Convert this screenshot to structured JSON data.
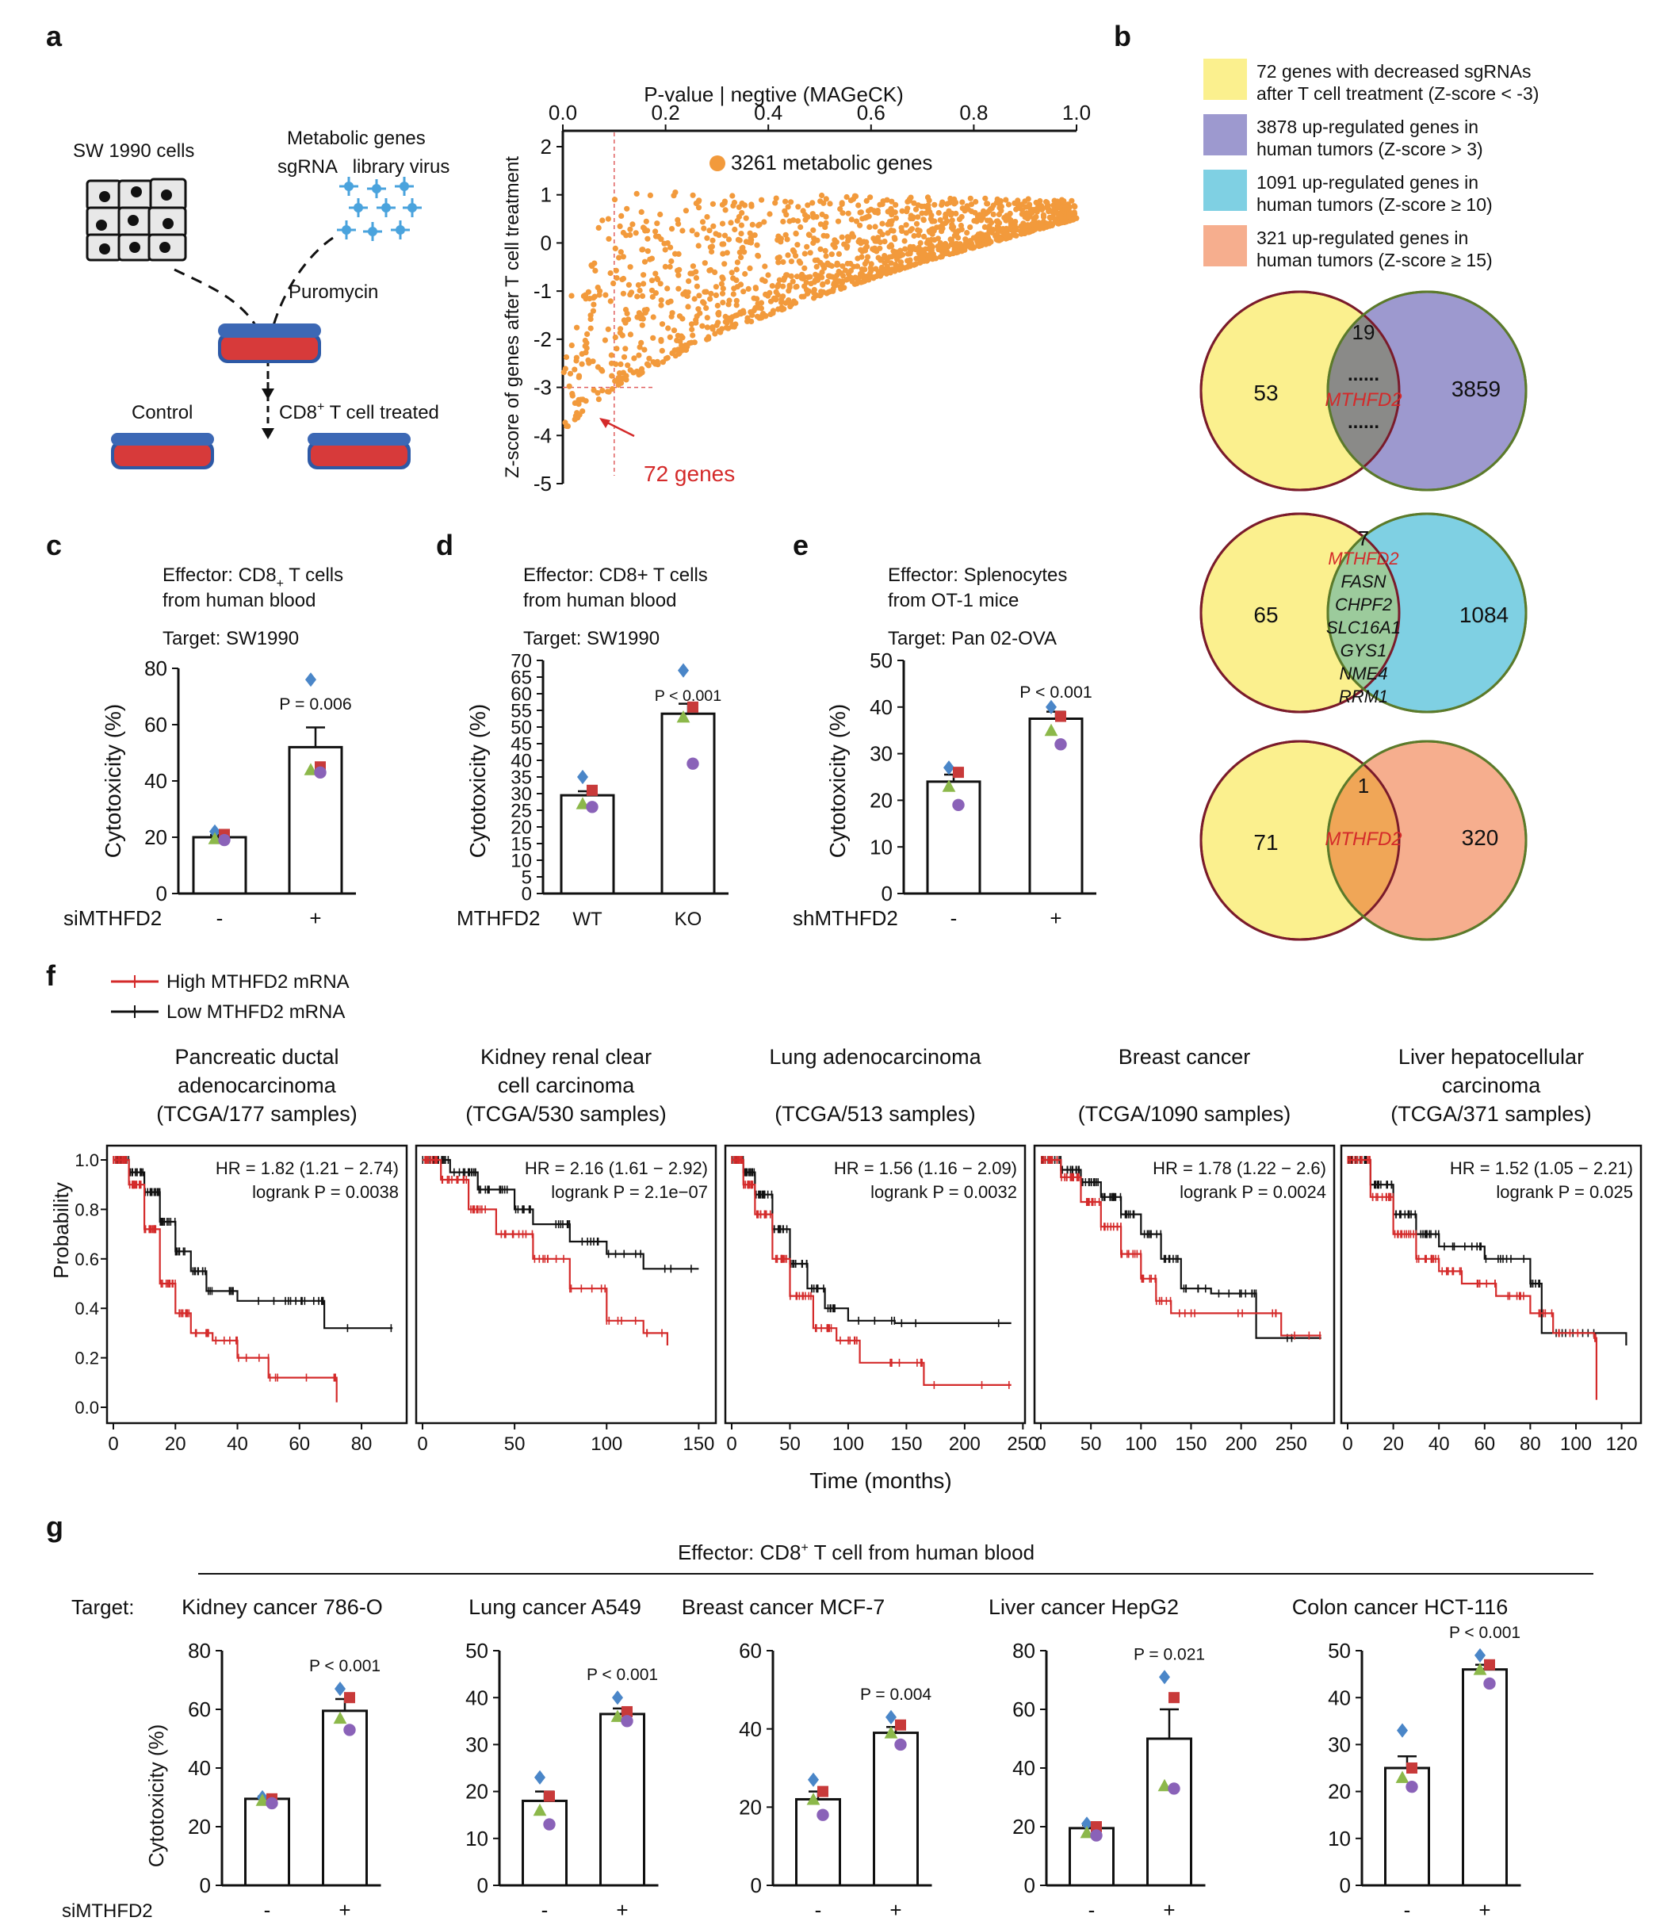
{
  "colors": {
    "orange": "#f29a3c",
    "yellow": "#fbf08e",
    "purple": "#9d99cf",
    "cyan": "#7fd0e3",
    "salmon": "#f6ae8e",
    "red": "#d42a2a",
    "dark": "#111111"
  },
  "panel_labels": {
    "a": "a",
    "b": "b",
    "c": "c",
    "d": "d",
    "e": "e",
    "f": "f",
    "g": "g"
  },
  "panel_a": {
    "schematic": {
      "cells_label": "SW 1990 cells",
      "library_line1": "Metabolic genes",
      "library_line2": "sgRNA   library virus",
      "selection": "Puromycin",
      "control": "Control",
      "treated_pre": "CD8",
      "treated_sup": "+",
      "treated_post": " T cell treated"
    },
    "chart_data": {
      "type": "scatter",
      "title": "P-value | negtive (MAGeCK)",
      "xlabel": "P-value | negtive (MAGeCK)",
      "ylabel": "Z-score of genes after T cell treatment",
      "xlim": [
        0,
        1
      ],
      "ylim": [
        -5,
        2
      ],
      "x_ticks": [
        "0.0",
        "0.2",
        "0.4",
        "0.6",
        "0.8",
        "1.0"
      ],
      "y_ticks": [
        "2",
        "1",
        "0",
        "-1",
        "-2",
        "-3",
        "-4",
        "-5"
      ],
      "legend": "3261 metabolic genes",
      "n_points": 3261,
      "x_threshold": 0.1,
      "y_threshold": -3,
      "annotation": "72 genes",
      "trend": {
        "lower_bound": [
          [
            0.0,
            -3.9
          ],
          [
            0.1,
            -3.0
          ],
          [
            0.3,
            -1.9
          ],
          [
            0.5,
            -1.1
          ],
          [
            0.7,
            -0.4
          ],
          [
            1.0,
            0.5
          ]
        ],
        "upper_bound": [
          [
            0.02,
            -1.0
          ],
          [
            0.1,
            1.2
          ],
          [
            0.3,
            1.0
          ],
          [
            0.5,
            1.0
          ],
          [
            0.7,
            0.95
          ],
          [
            1.0,
            0.9
          ]
        ]
      }
    }
  },
  "panel_b": {
    "legend": [
      {
        "line1": "72 genes with decreased sgRNAs",
        "line2": "after T cell treatment (Z-score < -3)",
        "color": "#fbf08e"
      },
      {
        "line1": "3878 up-regulated genes in",
        "line2": "human tumors (Z-score > 3)",
        "color": "#9d99cf"
      },
      {
        "line1": "1091 up-regulated genes in",
        "line2": "human tumors (Z-score ≥ 10)",
        "color": "#7fd0e3"
      },
      {
        "line1": "321 up-regulated genes in",
        "line2": "human tumors (Z-score ≥ 15)",
        "color": "#f6ae8e"
      }
    ],
    "venn1": {
      "left": "53",
      "overlap": "19",
      "right": "3859",
      "dots": "......",
      "gene": "MTHFD2"
    },
    "venn2": {
      "left": "65",
      "overlap": "7",
      "right": "1084",
      "genes": [
        "MTHFD2",
        "FASN",
        "CHPF2",
        "SLC16A1",
        "GYS1",
        "NME4",
        "RRM1"
      ]
    },
    "venn3": {
      "left": "71",
      "overlap": "1",
      "right": "320",
      "gene": "MTHFD2"
    }
  },
  "panel_c": {
    "effector1": "Effector: CD8",
    "effector_sub": "+",
    "effector1_end": " T cells",
    "effector2": "from human blood",
    "target": "Target: SW1990",
    "chart_data": {
      "type": "bar",
      "categories": [
        "-",
        "+"
      ],
      "values": [
        20,
        52
      ],
      "errors": [
        0.8,
        7
      ],
      "ylim": [
        0,
        80
      ],
      "y_ticks": [
        "0",
        "20",
        "40",
        "60",
        "80"
      ],
      "ylabel": "Cytotoxicity (%)",
      "xlabel": "siMTHFD2",
      "pvalue": "P = 0.006",
      "points": [
        [
          22,
          21,
          19.5,
          19
        ],
        [
          76,
          45,
          44,
          43
        ]
      ]
    }
  },
  "panel_d": {
    "effector1": "Effector: CD8+ T cells",
    "effector2": "from human blood",
    "target": "Target: SW1990",
    "chart_data": {
      "type": "bar",
      "categories": [
        "WT",
        "KO"
      ],
      "values": [
        29.5,
        54
      ],
      "errors": [
        1.2,
        3
      ],
      "ylim": [
        0,
        70
      ],
      "y_ticks": [
        "0",
        "5",
        "10",
        "15",
        "20",
        "25",
        "30",
        "35",
        "40",
        "45",
        "50",
        "55",
        "60",
        "65",
        "70"
      ],
      "ylabel": "Cytotoxicity (%)",
      "xlabel": "MTHFD2",
      "pvalue": "P < 0.001",
      "points": [
        [
          35,
          31,
          27,
          26
        ],
        [
          67,
          56,
          53,
          39
        ]
      ]
    }
  },
  "panel_e": {
    "effector1": "Effector: Splenocytes",
    "effector2": "from OT-1 mice",
    "target": "Target: Pan 02-OVA",
    "chart_data": {
      "type": "bar",
      "categories": [
        "-",
        "+"
      ],
      "values": [
        24,
        37.5
      ],
      "errors": [
        1.5,
        1.5
      ],
      "ylim": [
        0,
        50
      ],
      "y_ticks": [
        "0",
        "10",
        "20",
        "30",
        "40",
        "50"
      ],
      "ylabel": "Cytotoxicity (%)",
      "xlabel": "shMTHFD2",
      "pvalue": "P < 0.001",
      "points": [
        [
          27,
          26,
          23,
          19
        ],
        [
          40,
          38,
          35,
          32
        ]
      ]
    }
  },
  "panel_f": {
    "legend_high": "High MTHFD2 mRNA",
    "legend_low": "Low MTHFD2 mRNA",
    "ylabel": "Probability",
    "xlabel": "Time (months)",
    "y_ticks": [
      "0.0",
      "0.2",
      "0.4",
      "0.6",
      "0.8",
      "1.0"
    ],
    "chart_data": [
      {
        "type": "line",
        "title1": "Pancreatic ductal",
        "title2": "adenocarcinoma",
        "title3": "(TCGA/177 samples)",
        "hr": "HR = 1.82 (1.21 − 2.74)",
        "logrank": "logrank P = 0.0038",
        "xmax": 92,
        "x_ticks": [
          "0",
          "20",
          "40",
          "60",
          "80"
        ],
        "high": [
          [
            0,
            1
          ],
          [
            5,
            0.9
          ],
          [
            10,
            0.72
          ],
          [
            15,
            0.5
          ],
          [
            20,
            0.38
          ],
          [
            25,
            0.3
          ],
          [
            32,
            0.27
          ],
          [
            40,
            0.2
          ],
          [
            50,
            0.12
          ],
          [
            70,
            0.12
          ],
          [
            72,
            0.02
          ]
        ],
        "low": [
          [
            0,
            1
          ],
          [
            5,
            0.95
          ],
          [
            10,
            0.87
          ],
          [
            15,
            0.75
          ],
          [
            20,
            0.63
          ],
          [
            25,
            0.55
          ],
          [
            30,
            0.47
          ],
          [
            40,
            0.43
          ],
          [
            60,
            0.43
          ],
          [
            67,
            0.43
          ],
          [
            68,
            0.32
          ],
          [
            90,
            0.32
          ]
        ]
      },
      {
        "type": "line",
        "title1": "Kidney renal clear",
        "title2": "cell carcinoma",
        "title3": "(TCGA/530 samples)",
        "hr": "HR = 2.16 (1.61 − 2.92)",
        "logrank": "logrank P = 2.1e−07",
        "xmax": 155,
        "x_ticks": [
          "0",
          "50",
          "100",
          "150"
        ],
        "high": [
          [
            0,
            1
          ],
          [
            10,
            0.92
          ],
          [
            25,
            0.8
          ],
          [
            40,
            0.7
          ],
          [
            60,
            0.6
          ],
          [
            80,
            0.48
          ],
          [
            100,
            0.35
          ],
          [
            120,
            0.3
          ],
          [
            133,
            0.25
          ]
        ],
        "low": [
          [
            0,
            1
          ],
          [
            15,
            0.95
          ],
          [
            30,
            0.88
          ],
          [
            50,
            0.8
          ],
          [
            60,
            0.74
          ],
          [
            80,
            0.67
          ],
          [
            100,
            0.62
          ],
          [
            120,
            0.56
          ],
          [
            150,
            0.56
          ]
        ]
      },
      {
        "type": "line",
        "title1": "Lung adenocarcinoma",
        "title2": "",
        "title3": "(TCGA/513 samples)",
        "hr": "HR = 1.56 (1.16 − 2.09)",
        "logrank": "logrank P = 0.0032",
        "xmax": 245,
        "x_ticks": [
          "0",
          "50",
          "100",
          "150",
          "200",
          "250"
        ],
        "high": [
          [
            0,
            1
          ],
          [
            10,
            0.9
          ],
          [
            20,
            0.78
          ],
          [
            35,
            0.6
          ],
          [
            50,
            0.45
          ],
          [
            70,
            0.32
          ],
          [
            90,
            0.27
          ],
          [
            110,
            0.18
          ],
          [
            160,
            0.18
          ],
          [
            165,
            0.09
          ],
          [
            240,
            0.09
          ]
        ],
        "low": [
          [
            0,
            1
          ],
          [
            10,
            0.95
          ],
          [
            20,
            0.86
          ],
          [
            35,
            0.72
          ],
          [
            50,
            0.58
          ],
          [
            65,
            0.48
          ],
          [
            80,
            0.4
          ],
          [
            100,
            0.35
          ],
          [
            140,
            0.34
          ],
          [
            240,
            0.34
          ]
        ]
      },
      {
        "type": "line",
        "title1": "Breast cancer",
        "title2": "",
        "title3": "(TCGA/1090 samples)",
        "hr": "HR = 1.78 (1.22 − 2.6)",
        "logrank": "logrank P = 0.0024",
        "xmax": 285,
        "x_ticks": [
          "0",
          "50",
          "100",
          "150",
          "200",
          "250"
        ],
        "high": [
          [
            0,
            1
          ],
          [
            20,
            0.93
          ],
          [
            40,
            0.83
          ],
          [
            60,
            0.73
          ],
          [
            80,
            0.62
          ],
          [
            100,
            0.52
          ],
          [
            115,
            0.43
          ],
          [
            130,
            0.38
          ],
          [
            200,
            0.38
          ],
          [
            240,
            0.29
          ],
          [
            280,
            0.29
          ]
        ],
        "low": [
          [
            0,
            1
          ],
          [
            20,
            0.96
          ],
          [
            40,
            0.91
          ],
          [
            60,
            0.85
          ],
          [
            80,
            0.78
          ],
          [
            100,
            0.7
          ],
          [
            120,
            0.6
          ],
          [
            140,
            0.48
          ],
          [
            170,
            0.46
          ],
          [
            210,
            0.46
          ],
          [
            215,
            0.28
          ],
          [
            280,
            0.28
          ]
        ]
      },
      {
        "type": "line",
        "title1": "Liver hepatocellular",
        "title2": "carcinoma",
        "title3": "(TCGA/371 samples)",
        "hr": "HR = 1.52 (1.05 − 2.21)",
        "logrank": "logrank P = 0.025",
        "xmax": 125,
        "x_ticks": [
          "0",
          "20",
          "40",
          "60",
          "80",
          "100",
          "120"
        ],
        "high": [
          [
            0,
            1
          ],
          [
            10,
            0.85
          ],
          [
            20,
            0.7
          ],
          [
            30,
            0.6
          ],
          [
            40,
            0.55
          ],
          [
            50,
            0.5
          ],
          [
            65,
            0.45
          ],
          [
            80,
            0.38
          ],
          [
            90,
            0.3
          ],
          [
            108,
            0.28
          ],
          [
            109,
            0.03
          ]
        ],
        "low": [
          [
            0,
            1
          ],
          [
            10,
            0.9
          ],
          [
            20,
            0.78
          ],
          [
            30,
            0.7
          ],
          [
            40,
            0.65
          ],
          [
            60,
            0.6
          ],
          [
            80,
            0.5
          ],
          [
            85,
            0.3
          ],
          [
            100,
            0.3
          ],
          [
            122,
            0.25
          ]
        ]
      }
    ]
  },
  "panel_g": {
    "effector_pre": "Effector: CD8",
    "effector_sup": "+",
    "effector_post": " T cell from human blood",
    "target_label": "Target:",
    "ylabel": "Cytotoxicity (%)",
    "xlabel": "siMTHFD2",
    "chart_data": [
      {
        "type": "bar",
        "title": "Kidney cancer 786-O",
        "categories": [
          "-",
          "+"
        ],
        "values": [
          29.5,
          59.5
        ],
        "errors": [
          0.8,
          4
        ],
        "ylim": [
          0,
          80
        ],
        "y_ticks": [
          "0",
          "20",
          "40",
          "60",
          "80"
        ],
        "pvalue": "P < 0.001",
        "points": [
          [
            30,
            29.5,
            29,
            28
          ],
          [
            67,
            64,
            57,
            53
          ]
        ]
      },
      {
        "type": "bar",
        "title": "Lung cancer A549",
        "categories": [
          "-",
          "+"
        ],
        "values": [
          18,
          36.5
        ],
        "errors": [
          2,
          1.2
        ],
        "ylim": [
          0,
          50
        ],
        "y_ticks": [
          "0",
          "10",
          "20",
          "30",
          "40",
          "50"
        ],
        "pvalue": "P < 0.001",
        "points": [
          [
            23,
            19,
            16,
            13
          ],
          [
            40,
            37,
            36,
            35
          ]
        ]
      },
      {
        "type": "bar",
        "title": "Breast cancer MCF-7",
        "categories": [
          "-",
          "+"
        ],
        "values": [
          22,
          39
        ],
        "errors": [
          2,
          1.5
        ],
        "ylim": [
          0,
          60
        ],
        "y_ticks": [
          "0",
          "20",
          "40",
          "60"
        ],
        "pvalue": "P = 0.004",
        "points": [
          [
            27,
            24,
            22,
            18
          ],
          [
            43,
            41,
            39,
            36
          ]
        ]
      },
      {
        "type": "bar",
        "title": "Liver cancer HepG2",
        "categories": [
          "-",
          "+"
        ],
        "values": [
          19.5,
          50
        ],
        "errors": [
          1,
          10
        ],
        "ylim": [
          0,
          80
        ],
        "y_ticks": [
          "0",
          "20",
          "40",
          "60",
          "80"
        ],
        "pvalue": "P = 0.021",
        "points": [
          [
            21,
            20,
            18,
            17
          ],
          [
            71,
            64,
            34,
            33
          ]
        ]
      },
      {
        "type": "bar",
        "title": "Colon cancer HCT-116",
        "categories": [
          "-",
          "+"
        ],
        "values": [
          25,
          46
        ],
        "errors": [
          2.5,
          1
        ],
        "ylim": [
          0,
          50
        ],
        "y_ticks": [
          "0",
          "10",
          "20",
          "30",
          "40",
          "50"
        ],
        "pvalue": "P < 0.001",
        "points": [
          [
            33,
            25,
            23,
            21
          ],
          [
            49,
            47,
            46,
            43
          ]
        ]
      }
    ]
  }
}
